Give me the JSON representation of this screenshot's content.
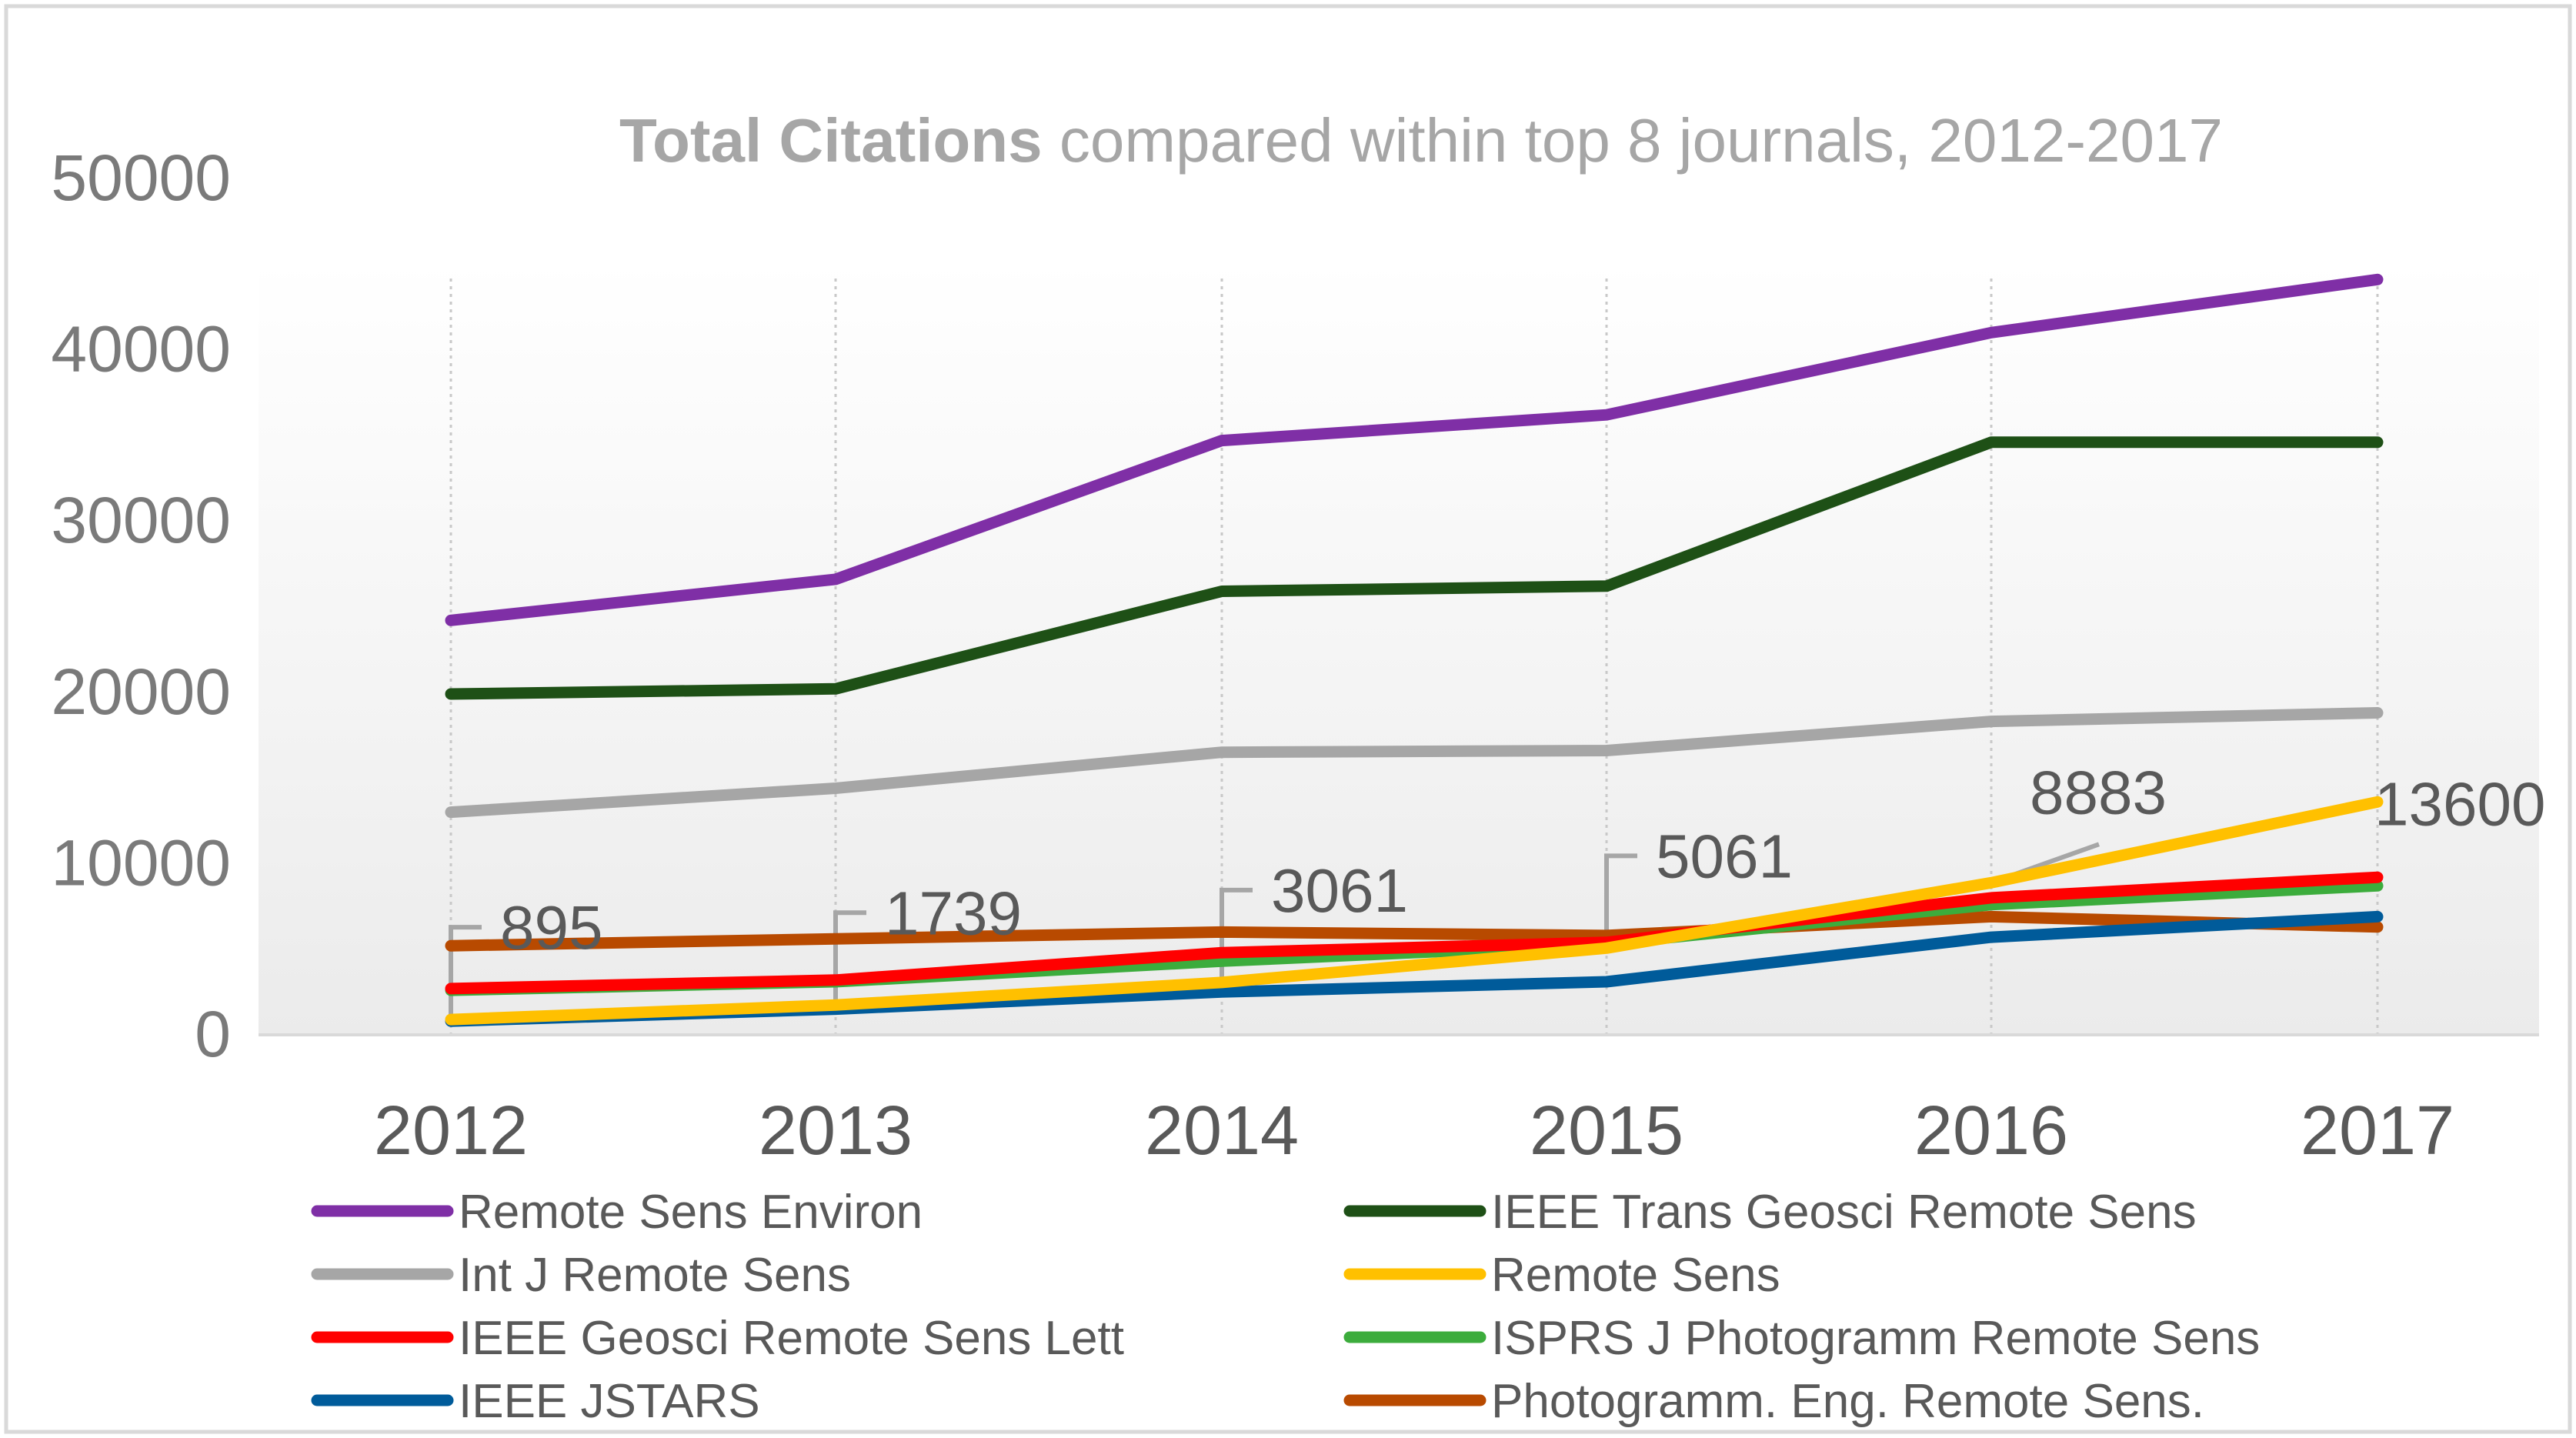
{
  "chart_data": {
    "type": "line",
    "title_bold": "Total Citations",
    "title_rest": " compared within top 8 journals, 2012-2017",
    "xlabel": "",
    "ylabel": "",
    "categories": [
      "2012",
      "2013",
      "2014",
      "2015",
      "2016",
      "2017"
    ],
    "ylim": [
      0,
      50000
    ],
    "yticks": [
      0,
      10000,
      20000,
      30000,
      40000,
      50000
    ],
    "ytick_labels": [
      "0",
      "10000",
      "20000",
      "30000",
      "40000",
      "50000"
    ],
    "grid": "vertical dotted lines at each year",
    "legend_position": "bottom",
    "series": [
      {
        "name": "Remote Sens Environ",
        "color": "#7f2fa6",
        "values": [
          24200,
          26600,
          34700,
          36200,
          41000,
          44100
        ]
      },
      {
        "name": "IEEE Trans Geosci Remote Sens",
        "color": "#1e5016",
        "values": [
          19900,
          20200,
          25900,
          26200,
          34600,
          34600
        ]
      },
      {
        "name": "Int J Remote Sens",
        "color": "#a6a6a6",
        "values": [
          13000,
          14400,
          16500,
          16600,
          18300,
          18800
        ]
      },
      {
        "name": "Remote Sens",
        "color": "#ffc000",
        "values": [
          895,
          1739,
          3061,
          5061,
          8883,
          13600
        ]
      },
      {
        "name": "IEEE Geosci Remote Sens Lett",
        "color": "#ff0000",
        "values": [
          2700,
          3200,
          4800,
          5400,
          8000,
          9200
        ]
      },
      {
        "name": "ISPRS J Photogramm Remote Sens",
        "color": "#3cac3c",
        "values": [
          2600,
          3100,
          4300,
          5300,
          7600,
          8700
        ]
      },
      {
        "name": "IEEE JSTARS",
        "color": "#005b9a",
        "values": [
          800,
          1500,
          2500,
          3100,
          5700,
          6900
        ]
      },
      {
        "name": "Photogramm. Eng. Remote Sens.",
        "color": "#b84a00",
        "values": [
          5200,
          5600,
          6000,
          5800,
          6900,
          6300
        ]
      }
    ],
    "data_labels": {
      "series": "Remote Sens",
      "labels": [
        "895",
        "1739",
        "3061",
        "5061",
        "8883",
        "13600"
      ]
    }
  }
}
